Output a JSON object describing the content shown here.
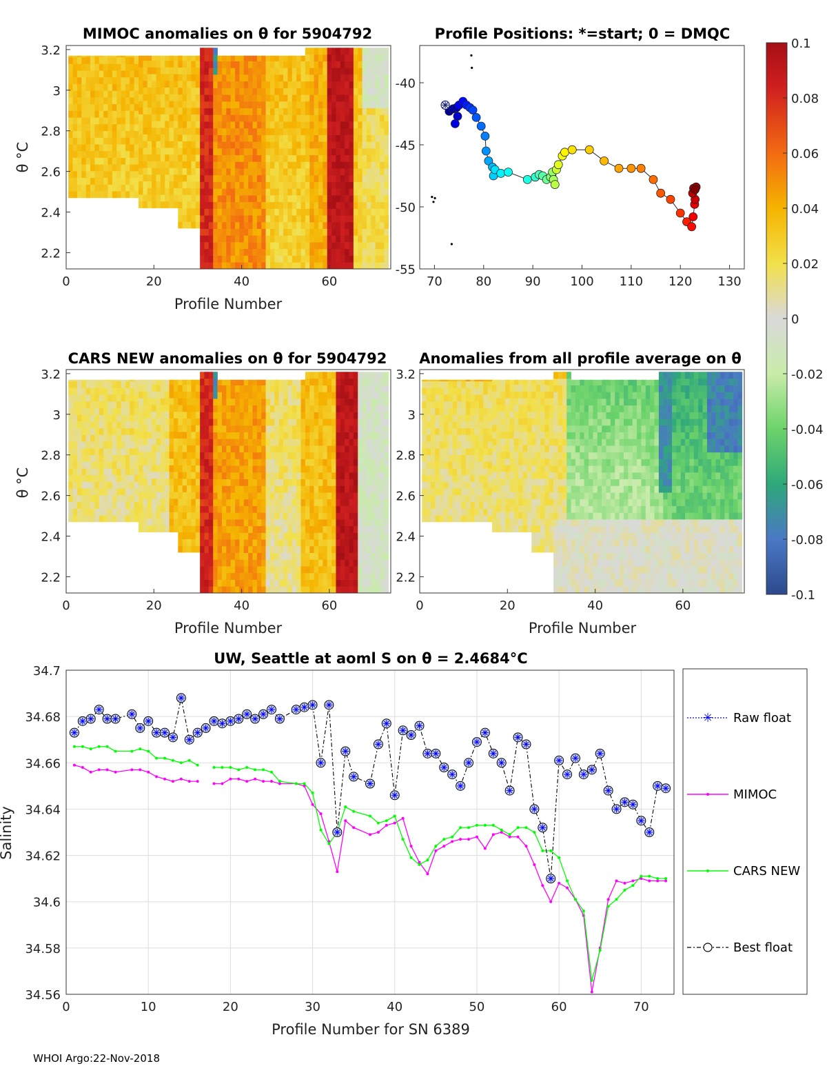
{
  "chart_data": [
    {
      "type": "heatmap",
      "id": "mimoc",
      "title": "MIMOC anomalies on θ  for 5904792",
      "xlabel": "Profile Number",
      "ylabel": "θ °C",
      "xlim": [
        0,
        74
      ],
      "ylim": [
        2.12,
        3.22
      ],
      "xticks": [
        "0",
        "20",
        "40",
        "60"
      ],
      "yticks": [
        "2.2",
        "2.4",
        "2.6",
        "2.8",
        "3",
        "3.2"
      ]
    },
    {
      "type": "scatter",
      "id": "positions",
      "title": "Profile Positions: *=start; 0 = DMQC",
      "xlim": [
        67,
        133
      ],
      "ylim": [
        -55,
        -37
      ],
      "xticks": [
        "70",
        "80",
        "90",
        "100",
        "110",
        "120",
        "130"
      ],
      "yticks": [
        "-40",
        "-45",
        "-50",
        "-55"
      ],
      "lon": [
        72.2,
        73.0,
        73.8,
        74.5,
        74.7,
        74.2,
        75.0,
        75.8,
        76.5,
        77.2,
        77.8,
        78.5,
        79.5,
        80.3,
        80.5,
        81.0,
        81.8,
        82.0,
        82.3,
        83.5,
        85.0,
        88.9,
        90.5,
        91.3,
        92.0,
        92.8,
        93.6,
        94.0,
        94.2,
        94.5,
        94.8,
        95.2,
        96.0,
        96.5,
        98.0,
        101.5,
        104.5,
        107.5,
        110.0,
        112.0,
        114.5,
        116.0,
        118.0,
        120.0,
        121.3,
        122.3,
        122.6,
        122.9,
        123.0,
        122.5,
        122.7,
        123.2,
        123.0
      ],
      "lat": [
        -41.8,
        -42.3,
        -42.1,
        -42.0,
        -42.7,
        -43.3,
        -41.8,
        -41.5,
        -41.8,
        -42.0,
        -42.2,
        -42.8,
        -43.5,
        -44.3,
        -45.5,
        -46.3,
        -46.8,
        -47.5,
        -47.0,
        -47.3,
        -47.2,
        -47.8,
        -47.6,
        -47.4,
        -47.5,
        -47.8,
        -47.6,
        -47.2,
        -47.8,
        -48.2,
        -47.0,
        -46.6,
        -45.9,
        -45.6,
        -45.4,
        -45.4,
        -46.3,
        -46.9,
        -46.9,
        -46.9,
        -47.8,
        -48.9,
        -49.4,
        -50.5,
        -51.2,
        -51.6,
        -50.8,
        -49.8,
        -49.4,
        -48.9,
        -48.5,
        -48.4,
        -48.6
      ],
      "start": [
        72.2,
        -41.8
      ]
    },
    {
      "type": "heatmap",
      "id": "cars",
      "title": "CARS NEW anomalies on θ for 5904792",
      "xlabel": "Profile Number",
      "ylabel": "θ °C",
      "xlim": [
        0,
        74
      ],
      "ylim": [
        2.12,
        3.22
      ],
      "xticks": [
        "0",
        "20",
        "40",
        "60"
      ],
      "yticks": [
        "2.2",
        "2.4",
        "2.6",
        "2.8",
        "3",
        "3.2"
      ]
    },
    {
      "type": "heatmap",
      "id": "avg",
      "title": "Anomalies from all profile average on θ",
      "xlabel": "Profile Number",
      "ylabel": "θ °C",
      "xlim": [
        0,
        74
      ],
      "ylim": [
        2.12,
        3.22
      ],
      "xticks": [
        "0",
        "20",
        "40",
        "60"
      ],
      "yticks": [
        "2.2",
        "2.4",
        "2.6",
        "2.8",
        "3",
        "3.2"
      ]
    },
    {
      "type": "colorbar",
      "id": "colorbar",
      "range": [
        -0.1,
        0.1
      ],
      "ticks": [
        "0.1",
        "0.08",
        "0.06",
        "0.04",
        "0.02",
        "0",
        "-0.02",
        "-0.04",
        "-0.06",
        "-0.08",
        "-0.1"
      ]
    },
    {
      "type": "line",
      "id": "salinity",
      "title": "UW, Seattle at aoml S on θ = 2.4684°C",
      "xlabel": "Profile Number for SN 6389",
      "ylabel": "Salinity",
      "xlim": [
        0,
        74
      ],
      "ylim": [
        34.56,
        34.7
      ],
      "xticks": [
        "0",
        "10",
        "20",
        "30",
        "40",
        "50",
        "60",
        "70"
      ],
      "yticks": [
        "34.56",
        "34.58",
        "34.6",
        "34.62",
        "34.64",
        "34.66",
        "34.68",
        "34.7"
      ],
      "legend": [
        "Raw float",
        "MIMOC",
        "CARS NEW",
        "Best float"
      ],
      "series": [
        {
          "name": "Best float",
          "x": [
            1,
            2,
            3,
            4,
            5,
            6,
            8,
            9,
            10,
            11,
            12,
            13,
            14,
            15,
            16,
            17,
            18,
            19,
            20,
            21,
            22,
            23,
            24,
            25,
            26,
            28,
            29,
            30,
            31,
            32,
            33,
            34,
            35,
            37,
            38,
            39,
            40,
            41,
            42,
            43,
            44,
            45,
            46,
            47,
            48,
            49,
            50,
            51,
            52,
            53,
            54,
            55,
            56,
            57,
            58,
            59,
            60,
            61,
            62,
            63,
            64,
            65,
            66,
            67,
            68,
            69,
            70,
            71,
            72,
            73
          ],
          "values": [
            34.673,
            34.678,
            34.679,
            34.683,
            34.679,
            34.679,
            34.681,
            34.675,
            34.678,
            34.673,
            34.673,
            34.671,
            34.688,
            34.67,
            34.673,
            34.675,
            34.678,
            34.677,
            34.678,
            34.679,
            34.681,
            34.679,
            34.681,
            34.683,
            34.679,
            34.683,
            34.684,
            34.685,
            34.66,
            34.685,
            34.63,
            34.665,
            34.654,
            34.651,
            34.668,
            34.677,
            34.646,
            34.674,
            34.672,
            34.676,
            34.664,
            34.664,
            34.658,
            34.655,
            34.65,
            34.66,
            34.669,
            34.673,
            34.664,
            34.66,
            34.648,
            34.671,
            34.668,
            34.64,
            34.632,
            34.61,
            34.661,
            34.655,
            34.662,
            34.655,
            34.657,
            34.664,
            34.648,
            34.64,
            34.643,
            34.642,
            34.635,
            34.63,
            34.65,
            34.649
          ]
        },
        {
          "name": "MIMOC",
          "x": [
            1,
            2,
            3,
            4,
            5,
            6,
            8,
            9,
            10,
            11,
            12,
            13,
            14,
            15,
            16,
            null,
            18,
            19,
            20,
            21,
            22,
            23,
            24,
            25,
            26,
            28,
            29,
            30,
            31,
            32,
            33,
            34,
            35,
            37,
            38,
            39,
            40,
            41,
            42,
            43,
            44,
            45,
            46,
            47,
            48,
            49,
            50,
            51,
            52,
            53,
            54,
            55,
            56,
            57,
            58,
            59,
            60,
            61,
            62,
            63,
            64,
            65,
            66,
            67,
            68,
            69,
            70,
            71,
            72,
            73
          ],
          "values": [
            34.659,
            34.658,
            34.656,
            34.657,
            34.657,
            34.656,
            34.657,
            34.657,
            34.656,
            34.654,
            34.653,
            34.652,
            34.653,
            34.652,
            34.652,
            null,
            34.651,
            34.651,
            34.653,
            34.653,
            34.652,
            34.653,
            34.652,
            34.652,
            34.651,
            34.651,
            34.65,
            34.642,
            34.638,
            34.626,
            34.613,
            34.635,
            34.632,
            34.629,
            34.63,
            34.633,
            34.634,
            34.636,
            34.624,
            34.617,
            34.612,
            34.622,
            34.624,
            34.626,
            34.627,
            34.627,
            34.628,
            34.623,
            34.629,
            34.63,
            34.628,
            34.628,
            34.624,
            34.616,
            34.607,
            34.6,
            34.608,
            34.606,
            34.601,
            34.594,
            34.561,
            34.58,
            34.601,
            34.609,
            34.608,
            34.609,
            34.61,
            34.609,
            34.609,
            34.609
          ]
        },
        {
          "name": "CARS NEW",
          "x": [
            1,
            2,
            3,
            4,
            5,
            6,
            8,
            9,
            10,
            11,
            12,
            13,
            14,
            15,
            16,
            null,
            18,
            19,
            20,
            21,
            22,
            23,
            24,
            25,
            26,
            28,
            29,
            30,
            31,
            32,
            33,
            34,
            35,
            37,
            38,
            39,
            40,
            41,
            42,
            43,
            44,
            45,
            46,
            47,
            48,
            49,
            50,
            51,
            52,
            53,
            54,
            55,
            56,
            57,
            58,
            59,
            60,
            61,
            62,
            63,
            64,
            65,
            66,
            67,
            68,
            69,
            70,
            71,
            72,
            73
          ],
          "values": [
            34.667,
            34.667,
            34.666,
            34.667,
            34.667,
            34.665,
            34.665,
            34.666,
            34.665,
            34.662,
            34.662,
            34.661,
            34.66,
            34.661,
            34.659,
            null,
            34.658,
            34.658,
            34.658,
            34.657,
            34.658,
            34.657,
            34.657,
            34.656,
            34.652,
            34.651,
            34.651,
            34.647,
            34.631,
            34.625,
            34.63,
            34.641,
            34.639,
            34.637,
            34.634,
            34.635,
            34.637,
            34.627,
            34.619,
            34.616,
            34.618,
            34.624,
            34.627,
            34.628,
            34.632,
            34.632,
            34.633,
            34.633,
            34.633,
            34.631,
            34.629,
            34.632,
            34.632,
            34.63,
            34.622,
            34.622,
            34.619,
            34.609,
            34.601,
            34.596,
            34.566,
            34.579,
            34.598,
            34.601,
            34.605,
            34.607,
            34.611,
            34.611,
            34.61,
            34.61
          ]
        }
      ]
    }
  ],
  "footer": "WHOI Argo:22-Nov-2018",
  "colors": {
    "background": "#ffffff",
    "mimoc": "#ff00ff",
    "cars": "#00ff00",
    "raw": "#0000ff",
    "best": "#000000",
    "grid": "#dddddd"
  }
}
